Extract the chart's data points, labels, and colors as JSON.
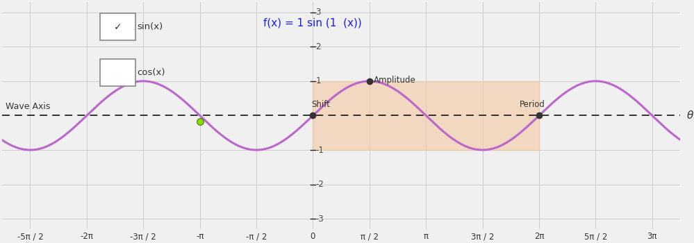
{
  "bg_color": "#f0f0f0",
  "grid_color": "#cccccc",
  "axis_color": "#222222",
  "wave_color": "#bb66cc",
  "wave_linewidth": 2.2,
  "xlim_half_pi": [
    -5.5,
    6.5
  ],
  "ylim": [
    -3.3,
    3.3
  ],
  "x_tick_values_half": [
    -5,
    -4,
    -3,
    -2,
    -1,
    0,
    1,
    2,
    3,
    4,
    5,
    6
  ],
  "x_tick_labels": [
    "-5π / 2",
    "-2π",
    "-3π / 2",
    "-π",
    "-π / 2",
    "0",
    "π / 2",
    "π",
    "3π / 2",
    "2π",
    "5π / 2",
    "3π"
  ],
  "y_ticks": [
    -3,
    -2,
    -1,
    1,
    2,
    3
  ],
  "shade_x0": 0.0,
  "shade_x1": 6.28318530718,
  "shade_ymin": -1.0,
  "shade_ymax": 1.0,
  "shade_color": "#f5c8a0",
  "shade_alpha": 0.6,
  "amplitude_point_x": 1.5707963,
  "amplitude_point_y": 1.0,
  "shift_point_x": 0.0,
  "shift_point_y": 0.0,
  "period_point_x": 6.28318530718,
  "period_point_y": 0.0,
  "green_point_x": -3.14159265359,
  "green_point_y": -0.18,
  "wave_axis_label": "Wave Axis",
  "theta_label": "θ",
  "formula_text": "f(x) = 1 sin (1  (x))",
  "formula_color": "#1a1aff",
  "sin_label": "sin(x)",
  "cos_label": "cos(x)"
}
